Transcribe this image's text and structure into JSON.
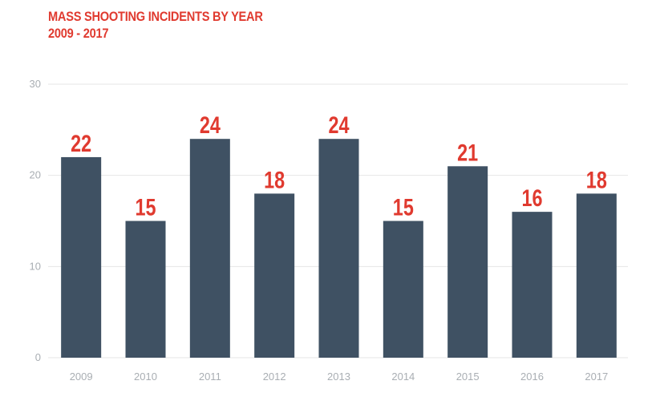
{
  "chart_data": {
    "type": "bar",
    "title": "MASS SHOOTING INCIDENTS BY YEAR",
    "subtitle": "2009 - 2017",
    "categories": [
      "2009",
      "2010",
      "2011",
      "2012",
      "2013",
      "2014",
      "2015",
      "2016",
      "2017"
    ],
    "values": [
      22,
      15,
      24,
      18,
      24,
      15,
      21,
      16,
      18
    ],
    "ylim": [
      0,
      30
    ],
    "yticks": [
      0,
      10,
      20,
      30
    ],
    "grid": true,
    "colors": {
      "bar": "#3f5163",
      "label": "#e03a2f",
      "grid": "#e6e6e6",
      "tick": "#a9aeb3"
    }
  }
}
